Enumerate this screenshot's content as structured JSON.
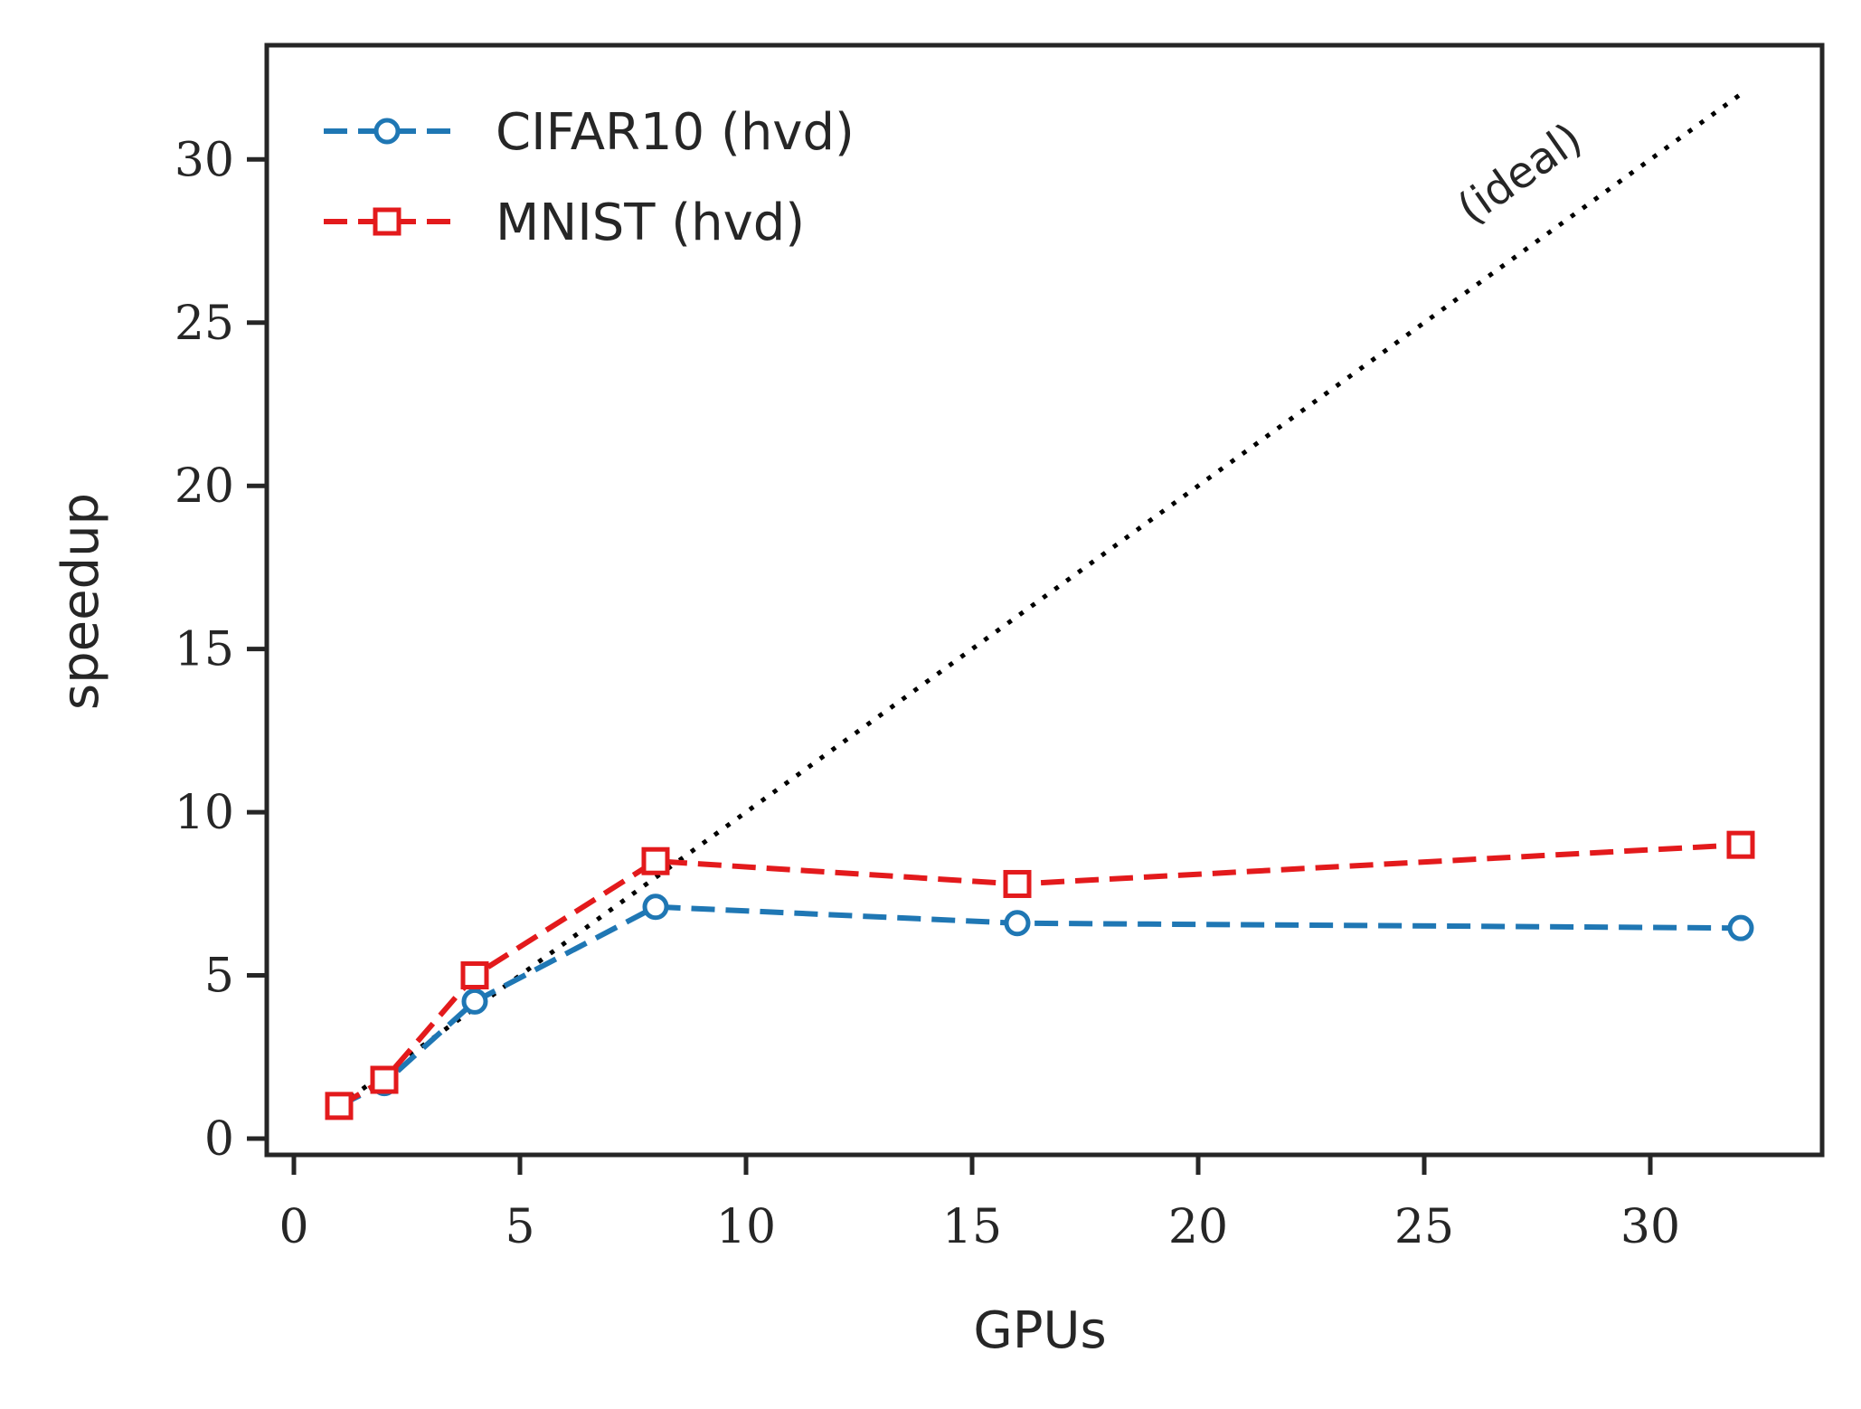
{
  "chart_data": {
    "type": "line",
    "title": "",
    "xlabel": "GPUs",
    "ylabel": "speedup",
    "xlim": [
      -0.6,
      33.8
    ],
    "ylim": [
      -0.5,
      33.5
    ],
    "xticks": [
      0,
      5,
      10,
      15,
      20,
      25,
      30
    ],
    "yticks": [
      0,
      5,
      10,
      15,
      20,
      25,
      30
    ],
    "grid": false,
    "legend_position": "top-left",
    "series": [
      {
        "name": "CIFAR10 (hvd)",
        "color": "#1f77b4",
        "marker": "circle",
        "linestyle": "dashed",
        "x": [
          1,
          2,
          4,
          8,
          16,
          32
        ],
        "y": [
          1.0,
          1.7,
          4.2,
          7.1,
          6.6,
          6.45
        ]
      },
      {
        "name": "MNIST (hvd)",
        "color": "#e31a1c",
        "marker": "square",
        "linestyle": "dashed",
        "x": [
          1,
          2,
          4,
          8,
          16,
          32
        ],
        "y": [
          1.0,
          1.8,
          5.0,
          8.5,
          7.8,
          9.0
        ]
      }
    ],
    "ideal_line": {
      "x": [
        1,
        32
      ],
      "y": [
        1,
        32
      ],
      "color": "#000000",
      "linestyle": "dotted"
    },
    "annotations": [
      {
        "text": "(ideal)",
        "x": 27.3,
        "y": 29.2
      }
    ]
  }
}
